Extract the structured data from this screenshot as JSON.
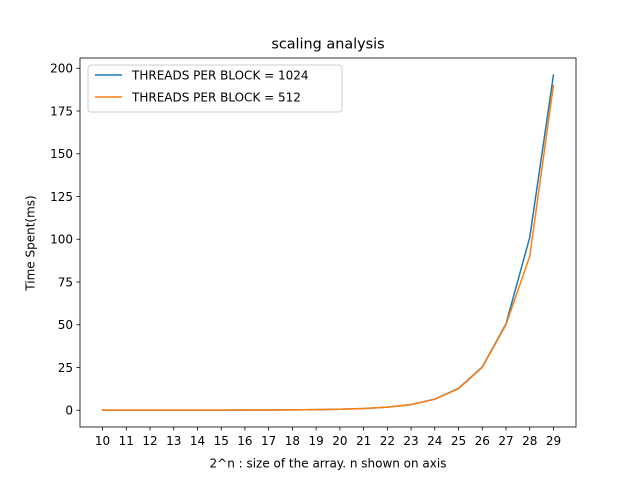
{
  "chart_data": {
    "type": "line",
    "title": "scaling analysis",
    "xlabel": "2^n : size of the array. n shown on axis",
    "ylabel": "Time Spent(ms)",
    "x": [
      10,
      11,
      12,
      13,
      14,
      15,
      16,
      17,
      18,
      19,
      20,
      21,
      22,
      23,
      24,
      25,
      26,
      27,
      28,
      29
    ],
    "xticks": [
      "10",
      "11",
      "12",
      "13",
      "14",
      "15",
      "16",
      "17",
      "18",
      "19",
      "20",
      "21",
      "22",
      "23",
      "24",
      "25",
      "26",
      "27",
      "28",
      "29"
    ],
    "yticks": [
      0,
      25,
      50,
      75,
      100,
      125,
      150,
      175,
      200
    ],
    "ytick_labels": [
      "0",
      "25",
      "50",
      "75",
      "100",
      "125",
      "150",
      "175",
      "200"
    ],
    "xlim": [
      9.05,
      29.95
    ],
    "ylim": [
      -9.8,
      206
    ],
    "grid": false,
    "legend_position": "upper-left",
    "series": [
      {
        "name": "THREADS PER BLOCK = 1024",
        "color": "#1f77b4",
        "values": [
          0.05,
          0.05,
          0.06,
          0.07,
          0.08,
          0.1,
          0.13,
          0.18,
          0.25,
          0.35,
          0.6,
          1.0,
          1.8,
          3.3,
          6.5,
          12.8,
          25.3,
          50.5,
          101.0,
          196.0
        ]
      },
      {
        "name": "THREADS PER BLOCK = 512",
        "color": "#ff7f0e",
        "values": [
          0.05,
          0.05,
          0.06,
          0.07,
          0.08,
          0.1,
          0.13,
          0.18,
          0.25,
          0.35,
          0.6,
          1.0,
          1.8,
          3.3,
          6.4,
          12.6,
          25.0,
          50.0,
          90.0,
          190.0
        ]
      }
    ]
  }
}
